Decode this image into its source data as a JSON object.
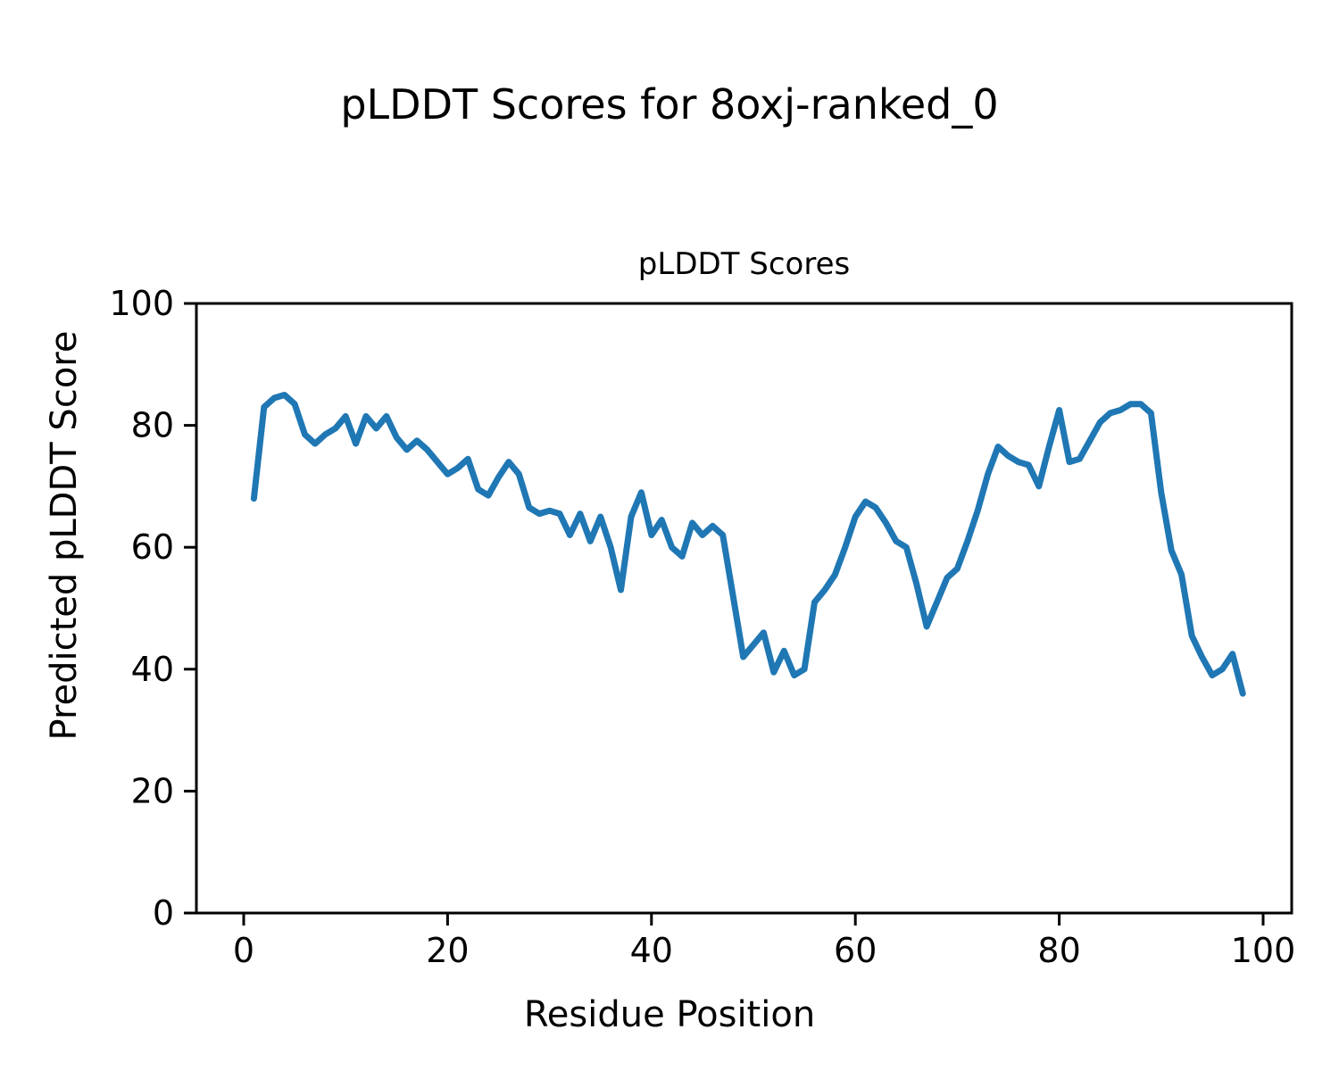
{
  "figure": {
    "background": "#ffffff",
    "text_color": "#000000"
  },
  "chart_data": {
    "type": "line",
    "suptitle": "pLDDT Scores for 8oxj-ranked_0",
    "title": "pLDDT Scores",
    "xlabel": "Residue Position",
    "ylabel": "Predicted pLDDT Score",
    "grid": false,
    "legend": null,
    "line_color": "#1f77b4",
    "axis_color": "#000000",
    "xlim": [
      -4.6,
      102.8
    ],
    "ylim": [
      0,
      100
    ],
    "xticks": [
      0,
      20,
      40,
      60,
      80,
      100
    ],
    "yticks": [
      0,
      20,
      40,
      60,
      80,
      100
    ],
    "x": [
      1,
      2,
      3,
      4,
      5,
      6,
      7,
      8,
      9,
      10,
      11,
      12,
      13,
      14,
      15,
      16,
      17,
      18,
      19,
      20,
      21,
      22,
      23,
      24,
      25,
      26,
      27,
      28,
      29,
      30,
      31,
      32,
      33,
      34,
      35,
      36,
      37,
      38,
      39,
      40,
      41,
      42,
      43,
      44,
      45,
      46,
      47,
      48,
      49,
      50,
      51,
      52,
      53,
      54,
      55,
      56,
      57,
      58,
      59,
      60,
      61,
      62,
      63,
      64,
      65,
      66,
      67,
      68,
      69,
      70,
      71,
      72,
      73,
      74,
      75,
      76,
      77,
      78,
      79,
      80,
      81,
      82,
      83,
      84,
      85,
      86,
      87,
      88,
      89,
      90,
      91,
      92,
      93,
      94,
      95,
      96,
      97,
      98
    ],
    "y": [
      68,
      83,
      84.5,
      85,
      83.5,
      78.5,
      77,
      78.5,
      79.5,
      81.5,
      77,
      81.5,
      79.5,
      81.5,
      78,
      76,
      77.5,
      76,
      74,
      72,
      73,
      74.5,
      69.5,
      68.5,
      71.5,
      74,
      72,
      66.5,
      65.5,
      66,
      65.5,
      62,
      65.5,
      61,
      65,
      60,
      53,
      65,
      69,
      62,
      64.5,
      60,
      58.5,
      64,
      62,
      63.5,
      62,
      52,
      42,
      44,
      46,
      39.5,
      43,
      39,
      40,
      51,
      53,
      55.5,
      60,
      65,
      67.5,
      66.5,
      64,
      61,
      60,
      54,
      47,
      51,
      55,
      56.5,
      61,
      66,
      72,
      76.5,
      75,
      74,
      73.5,
      70,
      76.5,
      82.5,
      74,
      74.5,
      77.5,
      80.5,
      82,
      82.5,
      83.5,
      83.5,
      82,
      69,
      59.5,
      55.5,
      45.5,
      42,
      39,
      40,
      42.5,
      36
    ]
  }
}
